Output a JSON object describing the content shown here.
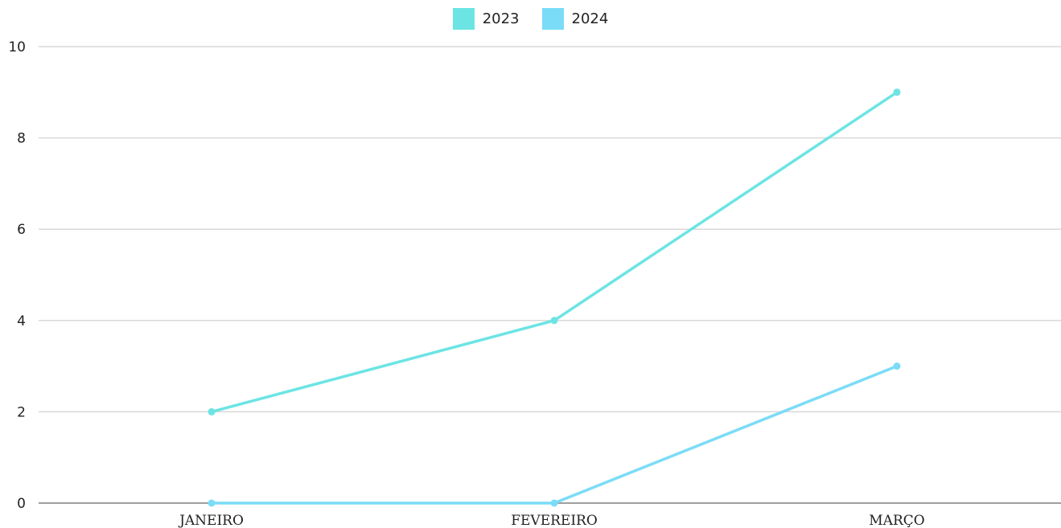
{
  "chart_data": {
    "type": "line",
    "categories": [
      "JANEIRO",
      "FEVEREIRO",
      "MARÇO"
    ],
    "series": [
      {
        "name": "2023",
        "values": [
          2,
          4,
          9
        ],
        "color": "#6ce4e4"
      },
      {
        "name": "2024",
        "values": [
          0,
          0,
          3
        ],
        "color": "#7adcf7"
      }
    ],
    "yticks": [
      "0",
      "2",
      "4",
      "6",
      "8",
      "10"
    ],
    "ylim": [
      0,
      10
    ],
    "grid": true,
    "legend_position": "top-center",
    "colors": {
      "grid": "#d9d9d9",
      "axis": "#9e9e9e"
    }
  }
}
